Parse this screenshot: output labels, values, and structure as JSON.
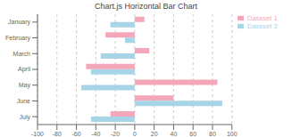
{
  "chart_data": {
    "type": "bar",
    "orientation": "horizontal",
    "title": "Chart.js Horizontal Bar Chart",
    "categories": [
      "January",
      "February",
      "March",
      "April",
      "May",
      "June",
      "July"
    ],
    "series": [
      {
        "name": "Dataset 1",
        "color": "#f4a7b9",
        "values": [
          10,
          -30,
          15,
          -50,
          85,
          40,
          -25
        ]
      },
      {
        "name": "Dataset 2",
        "color": "#a8d4e8",
        "values": [
          -25,
          -10,
          -35,
          -45,
          -55,
          90,
          -45
        ]
      }
    ],
    "xlim": [
      -100,
      100
    ],
    "xticks": [
      -100,
      -80,
      -60,
      -40,
      -20,
      0,
      20,
      40,
      60,
      80,
      100
    ],
    "grid": true,
    "legend": "right"
  }
}
